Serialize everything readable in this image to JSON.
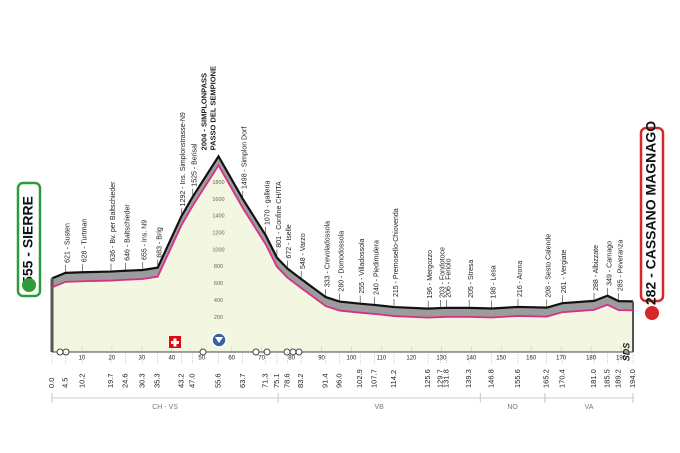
{
  "chart_data": {
    "type": "profile",
    "start": "555 - SIERRE",
    "finish": "282 - CASSANO MAGNAGO",
    "summit": [
      "2004 - SIMPLONPASS",
      "PASSO DEL SEMPIONE"
    ],
    "x": [
      0,
      4.5,
      10.2,
      19.7,
      24.6,
      30.3,
      35.3,
      43.2,
      47.0,
      55.6,
      63.7,
      71.3,
      75.1,
      78.6,
      83.2,
      91.4,
      96.0,
      102.9,
      107.7,
      114.2,
      125.6,
      129.7,
      131.8,
      139.3,
      146.8,
      155.6,
      165.2,
      170.4,
      181.0,
      185.5,
      189.2,
      194.0
    ],
    "x_labels": [
      "0.0",
      "4.5",
      "10.2",
      "19.7",
      "24.6",
      "30.3",
      "35.3",
      "43.2",
      "47.0",
      "55.6",
      "63.7",
      "71.3",
      "75.1",
      "78.6",
      "83.2",
      "91.4",
      "96.0",
      "102.9",
      "107.7",
      "114.2",
      "125.6",
      "129.7",
      "131.8",
      "139.3",
      "146.8",
      "155.6",
      "165.2",
      "170.4",
      "181.0",
      "185.5",
      "189.2",
      "194.0"
    ],
    "altitudes": [
      555,
      621,
      628,
      636,
      646,
      655,
      683,
      1292,
      1525,
      2004,
      1498,
      1070,
      801,
      672,
      548,
      333,
      280,
      255,
      240,
      215,
      196,
      203,
      206,
      205,
      198,
      216,
      208,
      261,
      288,
      349,
      285,
      282
    ],
    "labels": [
      null,
      "621 - Susten",
      "628 - Turtman",
      "636 - Bv. per Baltschieder",
      "646 - Baltschieder",
      "655 - Ins. N9",
      "683 - Brig",
      "1292 - Ins. Simplonstrasse-N9",
      "1525 - Berisal",
      null,
      "1498 - Simplon Dorf",
      "1070 - galleria",
      "801 - Confine CH/ITA",
      "672 - Iselle",
      "548 - Varzo",
      "333 - Crevoladossola",
      "280 - Domodossola",
      "255 - Villadossola",
      "240 - Piedimulera",
      "215 - Premosello-Chiovenda",
      "196 - Mergozzo",
      "203 - Fondotoce",
      "206 - Feriolo",
      "205 - Stresa",
      "198 - Lesa",
      "216 - Arona",
      "208 - Sesto Calende",
      "261 - Vergiate",
      "288 - Albizzate",
      "349 - Carnago",
      "285 - Peveranza",
      null
    ],
    "xlim": [
      0,
      194
    ],
    "ylim": [
      -200,
      2400
    ],
    "xticks": [
      10,
      20,
      30,
      40,
      50,
      60,
      70,
      80,
      90,
      100,
      110,
      120,
      130,
      140,
      150,
      160,
      170,
      180,
      190
    ],
    "yticks": [
      200,
      400,
      600,
      800,
      1000,
      1200,
      1400,
      1600,
      1800
    ],
    "regions": [
      {
        "name": "CH - VS",
        "xlim": [
          0,
          75.5
        ]
      },
      {
        "name": "VB",
        "xlim": [
          75.5,
          143
        ]
      },
      {
        "name": "NO",
        "xlim": [
          143,
          164.6
        ]
      },
      {
        "name": "VA",
        "xlim": [
          164.6,
          194
        ]
      }
    ],
    "line_color": "#d6308c",
    "logo": "SDS"
  }
}
